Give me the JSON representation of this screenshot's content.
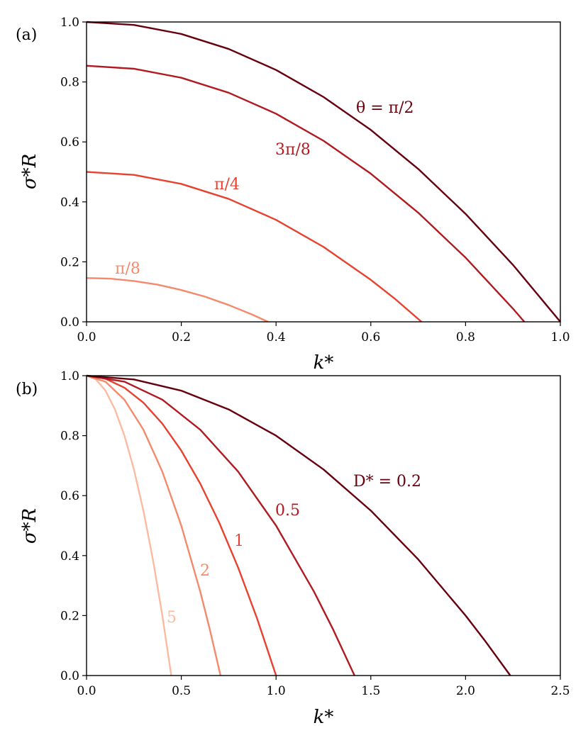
{
  "chart_data": [
    {
      "type": "line",
      "panel_label": "(a)",
      "xlabel": "k*",
      "ylabel": "σ*R",
      "xlim": [
        0,
        1
      ],
      "ylim": [
        0,
        1
      ],
      "xticks": [
        "0.0",
        "0.2",
        "0.4",
        "0.6",
        "0.8",
        "1.0"
      ],
      "yticks": [
        "0.0",
        "0.2",
        "0.4",
        "0.6",
        "0.8",
        "1.0"
      ],
      "series": [
        {
          "name": "π/8",
          "label": "π/8",
          "color": "#f4896b",
          "x": [
            0,
            0.05,
            0.1,
            0.15,
            0.2,
            0.25,
            0.3,
            0.35,
            0.383
          ],
          "y": [
            0.146,
            0.144,
            0.136,
            0.124,
            0.106,
            0.084,
            0.056,
            0.024,
            0.0
          ]
        },
        {
          "name": "π/4",
          "label": "π/4",
          "color": "#e8412f",
          "x": [
            0,
            0.1,
            0.2,
            0.3,
            0.4,
            0.5,
            0.6,
            0.65,
            0.707
          ],
          "y": [
            0.5,
            0.49,
            0.46,
            0.41,
            0.34,
            0.25,
            0.14,
            0.078,
            0.0
          ]
        },
        {
          "name": "3π/8",
          "label": "3π/8",
          "color": "#b01a20",
          "x": [
            0,
            0.1,
            0.2,
            0.3,
            0.4,
            0.5,
            0.6,
            0.7,
            0.8,
            0.9,
            0.924
          ],
          "y": [
            0.854,
            0.844,
            0.814,
            0.764,
            0.694,
            0.604,
            0.494,
            0.364,
            0.214,
            0.044,
            0.0
          ]
        },
        {
          "name": "θ = π/2",
          "label": "θ = π/2",
          "color": "#67000d",
          "x": [
            0,
            0.1,
            0.2,
            0.3,
            0.4,
            0.5,
            0.6,
            0.7,
            0.8,
            0.9,
            1.0
          ],
          "y": [
            1.0,
            0.99,
            0.96,
            0.91,
            0.84,
            0.75,
            0.64,
            0.51,
            0.36,
            0.19,
            0.0
          ]
        }
      ]
    },
    {
      "type": "line",
      "panel_label": "(b)",
      "xlabel": "k*",
      "ylabel": "σ*R",
      "xlim": [
        0,
        2.5
      ],
      "ylim": [
        0,
        1
      ],
      "xticks": [
        "0.0",
        "0.5",
        "1.0",
        "1.5",
        "2.0",
        "2.5"
      ],
      "yticks": [
        "0.0",
        "0.2",
        "0.4",
        "0.6",
        "0.8",
        "1.0"
      ],
      "series": [
        {
          "name": "5",
          "label": "5",
          "color": "#fcbba1",
          "x": [
            0,
            0.05,
            0.1,
            0.15,
            0.2,
            0.25,
            0.3,
            0.35,
            0.4,
            0.447
          ],
          "y": [
            1.0,
            0.9875,
            0.95,
            0.8875,
            0.8,
            0.6875,
            0.55,
            0.3875,
            0.2,
            0.0
          ]
        },
        {
          "name": "2",
          "label": "2",
          "color": "#f4896b",
          "x": [
            0,
            0.1,
            0.2,
            0.3,
            0.4,
            0.5,
            0.6,
            0.65,
            0.707
          ],
          "y": [
            1.0,
            0.98,
            0.92,
            0.82,
            0.68,
            0.5,
            0.28,
            0.155,
            0.0
          ]
        },
        {
          "name": "1",
          "label": "1",
          "color": "#e8412f",
          "x": [
            0,
            0.1,
            0.2,
            0.3,
            0.4,
            0.5,
            0.6,
            0.7,
            0.8,
            0.9,
            1.0
          ],
          "y": [
            1.0,
            0.99,
            0.96,
            0.91,
            0.84,
            0.75,
            0.64,
            0.51,
            0.36,
            0.19,
            0.0
          ]
        },
        {
          "name": "0.5",
          "label": "0.5",
          "color": "#b01a20",
          "x": [
            0,
            0.2,
            0.4,
            0.6,
            0.8,
            1.0,
            1.2,
            1.3,
            1.414
          ],
          "y": [
            1.0,
            0.98,
            0.92,
            0.82,
            0.68,
            0.5,
            0.28,
            0.155,
            0.0
          ]
        },
        {
          "name": "D* = 0.2",
          "label": "D* = 0.2",
          "color": "#67000d",
          "x": [
            0,
            0.25,
            0.5,
            0.75,
            1.0,
            1.25,
            1.5,
            1.75,
            2.0,
            2.1,
            2.236
          ],
          "y": [
            1.0,
            0.9875,
            0.95,
            0.8875,
            0.8,
            0.6875,
            0.55,
            0.3875,
            0.2,
            0.118,
            0.0
          ]
        }
      ]
    }
  ]
}
